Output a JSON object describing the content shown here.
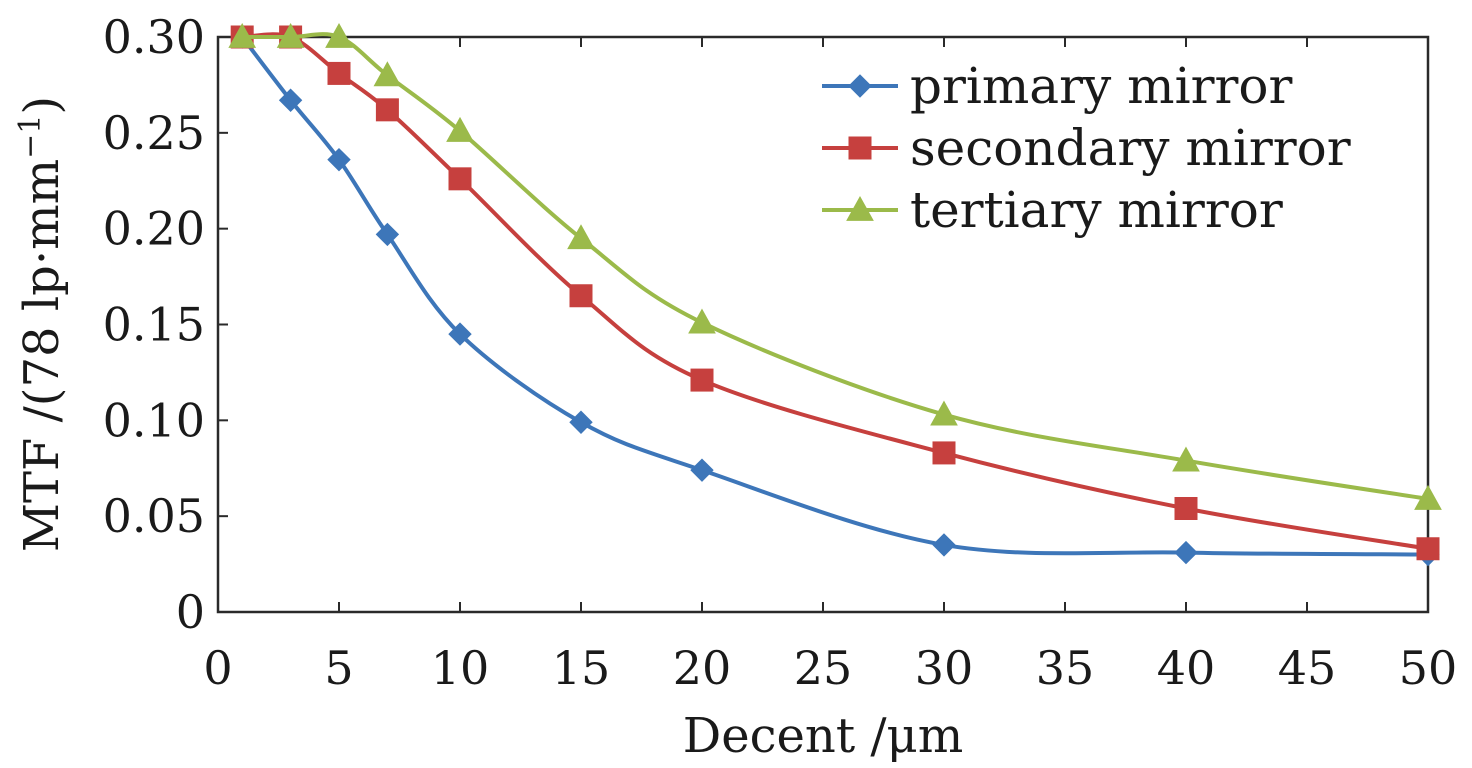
{
  "chart_data": {
    "type": "line",
    "title": "",
    "xlabel": "Decent /μm",
    "ylabel_main": "MTF /(78 lp·mm",
    "ylabel_sup": "−1",
    "ylabel_close": ")",
    "xlim": [
      0,
      50
    ],
    "ylim": [
      0,
      0.3
    ],
    "x_ticks": [
      0,
      5,
      10,
      15,
      20,
      25,
      30,
      35,
      40,
      45,
      50
    ],
    "x_tick_labels": [
      "0",
      "5",
      "10",
      "15",
      "20",
      "25",
      "30",
      "35",
      "40",
      "45",
      "50"
    ],
    "y_ticks": [
      0,
      0.05,
      0.1,
      0.15,
      0.2,
      0.25,
      0.3
    ],
    "y_tick_labels": [
      "0",
      "0.05",
      "0.10",
      "0.15",
      "0.20",
      "0.25",
      "0.30"
    ],
    "grid": false,
    "legend_position": "top-right",
    "series": [
      {
        "name": "primary mirror",
        "color": "#3d76b9",
        "marker": "diamond",
        "x": [
          1,
          3,
          5,
          7,
          10,
          15,
          20,
          30,
          40,
          50
        ],
        "values": [
          0.3,
          0.267,
          0.236,
          0.197,
          0.145,
          0.099,
          0.074,
          0.035,
          0.031,
          0.03
        ]
      },
      {
        "name": "secondary mirror",
        "color": "#c6403e",
        "marker": "square",
        "x": [
          1,
          3,
          5,
          7,
          10,
          15,
          20,
          30,
          40,
          50
        ],
        "values": [
          0.3,
          0.3,
          0.281,
          0.262,
          0.226,
          0.165,
          0.121,
          0.083,
          0.054,
          0.033
        ]
      },
      {
        "name": "tertiary mirror",
        "color": "#9bba4a",
        "marker": "triangle",
        "x": [
          1,
          3,
          5,
          7,
          10,
          15,
          20,
          30,
          40,
          50
        ],
        "values": [
          0.3,
          0.3,
          0.3,
          0.28,
          0.251,
          0.195,
          0.151,
          0.103,
          0.079,
          0.059
        ]
      }
    ]
  }
}
